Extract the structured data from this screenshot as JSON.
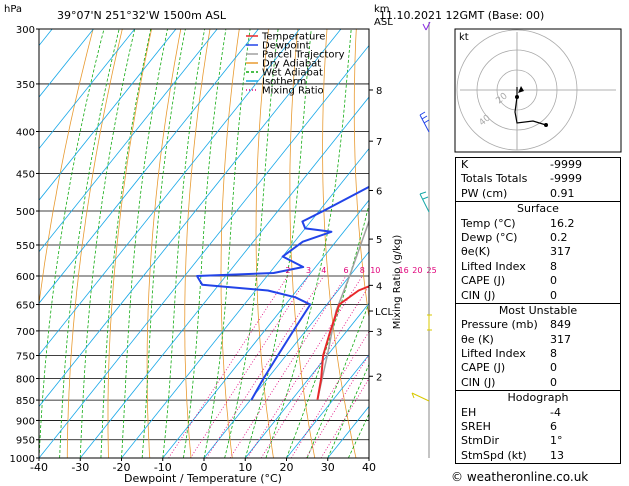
{
  "header": {
    "hpa": "hPa",
    "location": "39°07'N  251°32'W  1500m  ASL",
    "km": "km",
    "asl": "ASL",
    "datetime": "11.10.2021  12GMT  (Base: 00)"
  },
  "legend": [
    "Temperature",
    "Dewpoint",
    "Parcel Trajectory",
    "Dry Adiabat",
    "Wet Adiabat",
    "Isotherm",
    "Mixing Ratio"
  ],
  "colors": {
    "temperature": "#e8282a",
    "dewpoint": "#2244e8",
    "parcel": "#a0a0a0",
    "dry_adiabat": "#e89a30",
    "wet_adiabat": "#10aa10",
    "isotherm": "#18a8e8",
    "mixing_ratio": "#e0007a"
  },
  "chart_data": {
    "type": "line",
    "title": "",
    "xlabel": "Dewpoint / Temperature (°C)",
    "ylabel": "hPa",
    "y2label": "Mixing Ratio (g/kg)",
    "xlim": [
      -40,
      40
    ],
    "ylim": [
      300,
      1000
    ],
    "x_ticks": [
      -40,
      -30,
      -20,
      -10,
      0,
      10,
      20,
      30,
      40
    ],
    "p_ticks": [
      300,
      350,
      400,
      450,
      500,
      550,
      600,
      650,
      700,
      750,
      800,
      850,
      900,
      950,
      1000
    ],
    "km_ticks": [
      {
        "label": "8",
        "p": 356
      },
      {
        "label": "7",
        "p": 411
      },
      {
        "label": "6",
        "p": 472
      },
      {
        "label": "5",
        "p": 541
      },
      {
        "label": "4",
        "p": 616
      },
      {
        "label": "3",
        "p": 701
      },
      {
        "label": "2",
        "p": 795
      }
    ],
    "lcl": {
      "label": "LCL",
      "p": 662
    },
    "mixing_ratio_labels": [
      "2",
      "3",
      "4",
      "6",
      "8",
      "10",
      "16",
      "20",
      "25"
    ],
    "mixing_ratio_values": [
      2,
      3,
      4,
      6,
      8,
      10,
      16,
      20,
      25
    ],
    "series": [
      {
        "name": "Temperature",
        "points": [
          [
            16.2,
            849
          ],
          [
            13,
            800
          ],
          [
            9,
            750
          ],
          [
            6,
            700
          ],
          [
            3,
            650
          ],
          [
            5,
            625
          ],
          [
            11,
            600
          ],
          [
            11,
            575
          ],
          [
            10,
            550
          ],
          [
            12,
            525
          ],
          [
            12,
            500
          ],
          [
            8,
            450
          ],
          [
            3,
            400
          ],
          [
            -2,
            350
          ],
          [
            -6,
            300
          ]
        ]
      },
      {
        "name": "Dewpoint",
        "points": [
          [
            0.2,
            849
          ],
          [
            -1,
            800
          ],
          [
            -2,
            750
          ],
          [
            -3,
            700
          ],
          [
            -4,
            650
          ],
          [
            -9,
            637
          ],
          [
            -17,
            625
          ],
          [
            -34,
            615
          ],
          [
            -37,
            600
          ],
          [
            -19,
            595
          ],
          [
            -13,
            585
          ],
          [
            -20,
            568
          ],
          [
            -18,
            545
          ],
          [
            -13,
            530
          ],
          [
            -20,
            525
          ],
          [
            -22,
            515
          ],
          [
            -19,
            500
          ],
          [
            -9,
            450
          ],
          [
            -3,
            400
          ],
          [
            -8,
            390
          ],
          [
            -6,
            375
          ],
          [
            -8,
            370
          ],
          [
            -7,
            350
          ],
          [
            -3,
            300
          ]
        ]
      },
      {
        "name": "Parcel Trajectory",
        "points": [
          [
            16.2,
            849
          ],
          [
            10,
            750
          ],
          [
            3.5,
            662
          ],
          [
            0,
            600
          ],
          [
            -7,
            500
          ],
          [
            -15,
            400
          ],
          [
            -22,
            300
          ]
        ]
      }
    ]
  },
  "hodograph": {
    "label": "kt",
    "rings": [
      "20",
      "40"
    ]
  },
  "indices": [
    {
      "label": "K",
      "value": "-9999"
    },
    {
      "label": "Totals Totals",
      "value": "-9999"
    },
    {
      "label": "PW (cm)",
      "value": "0.91"
    }
  ],
  "surface": {
    "title": "Surface",
    "rows": [
      {
        "label": "Temp (°C)",
        "value": "16.2"
      },
      {
        "label": "Dewp (°C)",
        "value": "0.2"
      },
      {
        "label": "θe(K)",
        "value": "317"
      },
      {
        "label": "Lifted Index",
        "value": "8"
      },
      {
        "label": "CAPE (J)",
        "value": "0"
      },
      {
        "label": "CIN (J)",
        "value": "0"
      }
    ]
  },
  "most_unstable": {
    "title": "Most Unstable",
    "rows": [
      {
        "label": "Pressure (mb)",
        "value": "849"
      },
      {
        "label": "θe (K)",
        "value": "317"
      },
      {
        "label": "Lifted Index",
        "value": "8"
      },
      {
        "label": "CAPE (J)",
        "value": "0"
      },
      {
        "label": "CIN (J)",
        "value": "0"
      }
    ]
  },
  "hodograph_table": {
    "title": "Hodograph",
    "rows": [
      {
        "label": "EH",
        "value": "-4"
      },
      {
        "label": "SREH",
        "value": "6"
      },
      {
        "label": "StmDir",
        "value": "1°"
      },
      {
        "label": "StmSpd (kt)",
        "value": "13"
      }
    ]
  },
  "copyright": "© weatheronline.co.uk"
}
